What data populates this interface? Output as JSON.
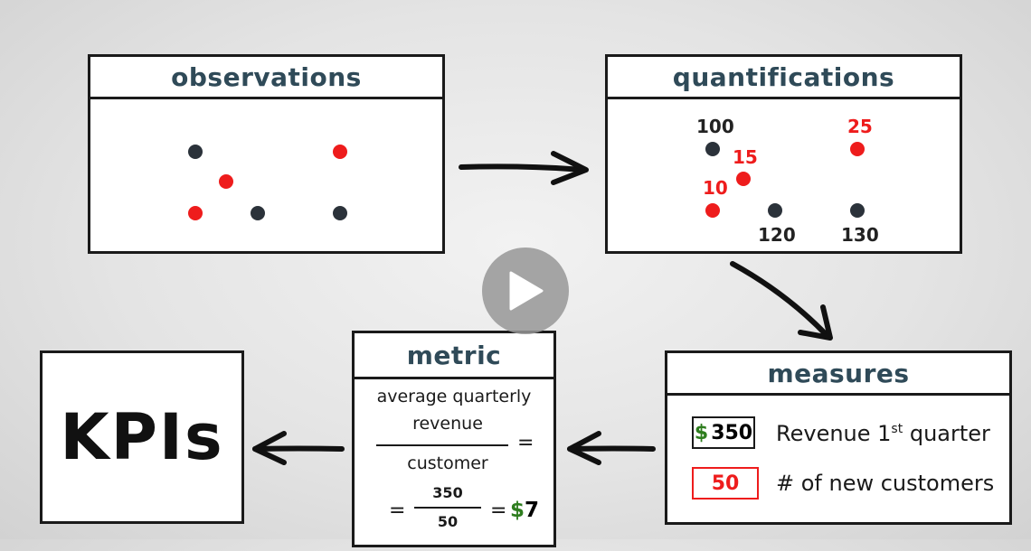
{
  "boxes": {
    "observations": {
      "title": "observations"
    },
    "quantifications": {
      "title": "quantifications",
      "labels": {
        "l100": "100",
        "l25": "25",
        "l15": "15",
        "l10": "10",
        "l120": "120",
        "l130": "130"
      }
    },
    "measures": {
      "title": "measures",
      "rows": [
        {
          "currency": "$",
          "value": "350",
          "label": "Revenue 1",
          "sup": "st",
          "label_end": " quarter"
        },
        {
          "value": "50",
          "label": "# of new customers"
        }
      ]
    },
    "metric": {
      "title": "metric",
      "line1": "average quarterly",
      "numerator": "revenue",
      "denominator": "customer",
      "eq1": "=",
      "eq2": "=",
      "frac_num": "350",
      "frac_den": "50",
      "eq3": "=",
      "currency": "$",
      "result": "7"
    },
    "kpis": {
      "title": "KPIs"
    }
  },
  "colors": {
    "accent_red": "#ee1c1c",
    "dark_dot": "#2b323a",
    "title_color": "#2f4a58",
    "dollar_green": "#2e7d1e"
  },
  "icons": {
    "play": "play-icon"
  }
}
